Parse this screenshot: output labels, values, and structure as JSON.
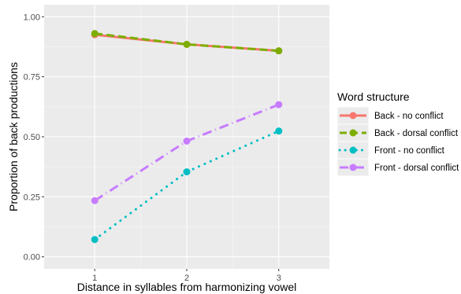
{
  "chart_data": {
    "type": "line",
    "title": "",
    "xlabel": "Distance in syllables from harmonizing vowel",
    "ylabel": "Proportion of back productions",
    "x": [
      1,
      2,
      3
    ],
    "x_ticks": [
      "1",
      "2",
      "3"
    ],
    "xlim": [
      0.45,
      3.55
    ],
    "ylim": [
      -0.05,
      1.05
    ],
    "y_ticks": [
      "0.00",
      "0.25",
      "0.50",
      "0.75",
      "1.00"
    ],
    "grid": true,
    "legend_position": "right",
    "legend_title": "Word structure",
    "series": [
      {
        "name": "Back - no conflict",
        "values": [
          0.925,
          0.885,
          0.858
        ],
        "color": "#F8766D",
        "linestyle": "solid"
      },
      {
        "name": "Back - dorsal conflict",
        "values": [
          0.93,
          0.885,
          0.858
        ],
        "color": "#7CAE00",
        "linestyle": "dashed"
      },
      {
        "name": "Front - no conflict",
        "values": [
          0.072,
          0.354,
          0.524
        ],
        "color": "#00BFC4",
        "linestyle": "dotted"
      },
      {
        "name": "Front - dorsal conflict",
        "values": [
          0.234,
          0.482,
          0.634
        ],
        "color": "#C77CFF",
        "linestyle": "dotdash"
      }
    ]
  }
}
